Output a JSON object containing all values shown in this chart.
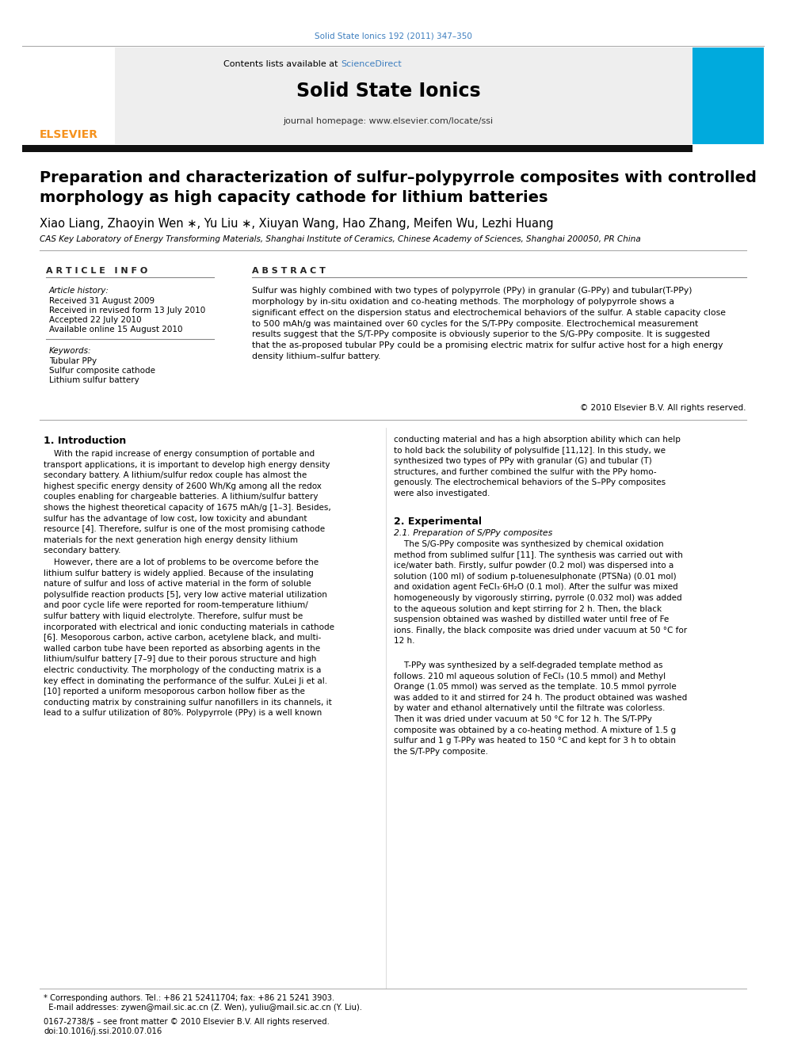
{
  "journal_ref": "Solid State Ionics 192 (2011) 347–350",
  "journal_ref_color": "#3d7ebf",
  "contents_line": "Contents lists available at ",
  "science_direct": "ScienceDirect",
  "science_direct_color": "#3d7ebf",
  "journal_name": "Solid State Ionics",
  "journal_homepage": "journal homepage: www.elsevier.com/locate/ssi",
  "title_line1": "Preparation and characterization of sulfur–polypyrrole composites with controlled",
  "title_line2": "morphology as high capacity cathode for lithium batteries",
  "authors": "Xiao Liang, Zhaoyin Wen ∗, Yu Liu ∗, Xiuyan Wang, Hao Zhang, Meifen Wu, Lezhi Huang",
  "affiliation": "CAS Key Laboratory of Energy Transforming Materials, Shanghai Institute of Ceramics, Chinese Academy of Sciences, Shanghai 200050, PR China",
  "article_info_header": "A R T I C L E   I N F O",
  "abstract_header": "A B S T R A C T",
  "history_label": "Article history:",
  "received": "Received 31 August 2009",
  "revised": "Received in revised form 13 July 2010",
  "accepted": "Accepted 22 July 2010",
  "available": "Available online 15 August 2010",
  "keywords_label": "Keywords:",
  "kw1": "Tubular PPy",
  "kw2": "Sulfur composite cathode",
  "kw3": "Lithium sulfur battery",
  "abstract": "Sulfur was highly combined with two types of polypyrrole (PPy) in granular (G-PPy) and tubular(T-PPy)\nmorphology by in-situ oxidation and co-heating methods. The morphology of polypyrrole shows a\nsignificant effect on the dispersion status and electrochemical behaviors of the sulfur. A stable capacity close\nto 500 mAh/g was maintained over 60 cycles for the S/T-PPy composite. Electrochemical measurement\nresults suggest that the S/T-PPy composite is obviously superior to the S/G-PPy composite. It is suggested\nthat the as-proposed tubular PPy could be a promising electric matrix for sulfur active host for a high energy\ndensity lithium–sulfur battery.",
  "copyright": "© 2010 Elsevier B.V. All rights reserved.",
  "intro_header": "1. Introduction",
  "intro_col1_p1": "    With the rapid increase of energy consumption of portable and\ntransport applications, it is important to develop high energy density\nsecondary battery. A lithium/sulfur redox couple has almost the\nhighest specific energy density of 2600 Wh/Kg among all the redox\ncouples enabling for chargeable batteries. A lithium/sulfur battery\nshows the highest theoretical capacity of 1675 mAh/g [1–3]. Besides,\nsulfur has the advantage of low cost, low toxicity and abundant\nresource [4]. Therefore, sulfur is one of the most promising cathode\nmaterials for the next generation high energy density lithium\nsecondary battery.",
  "intro_col1_p2": "    However, there are a lot of problems to be overcome before the\nlithium sulfur battery is widely applied. Because of the insulating\nnature of sulfur and loss of active material in the form of soluble\npolysulfide reaction products [5], very low active material utilization\nand poor cycle life were reported for room-temperature lithium/\nsulfur battery with liquid electrolyte. Therefore, sulfur must be\nincorporated with electrical and ionic conducting materials in cathode\n[6]. Mesoporous carbon, active carbon, acetylene black, and multi-\nwalled carbon tube have been reported as absorbing agents in the\nlithium/sulfur battery [7–9] due to their porous structure and high\nelectric conductivity. The morphology of the conducting matrix is a\nkey effect in dominating the performance of the sulfur. XuLei Ji et al.\n[10] reported a uniform mesoporous carbon hollow fiber as the\nconducting matrix by constraining sulfur nanofillers in its channels, it\nlead to a sulfur utilization of 80%. Polypyrrole (PPy) is a well known",
  "intro_col2_p1": "conducting material and has a high absorption ability which can help\nto hold back the solubility of polysulfide [11,12]. In this study, we\nsynthesized two types of PPy with granular (G) and tubular (T)\nstructures, and further combined the sulfur with the PPy homo-\ngenously. The electrochemical behaviors of the S–PPy composites\nwere also investigated.",
  "exp_header": "2. Experimental",
  "exp_sub": "2.1. Preparation of S/PPy composites",
  "exp_col2_p1": "    The S/G-PPy composite was synthesized by chemical oxidation\nmethod from sublimed sulfur [11]. The synthesis was carried out with\nice/water bath. Firstly, sulfur powder (0.2 mol) was dispersed into a\nsolution (100 ml) of sodium p-toluenesulphonate (PTSNa) (0.01 mol)\nand oxidation agent FeCl₃·6H₂O (0.1 mol). After the sulfur was mixed\nhomogeneously by vigorously stirring, pyrrole (0.032 mol) was added\nto the aqueous solution and kept stirring for 2 h. Then, the black\nsuspension obtained was washed by distilled water until free of Fe\nions. Finally, the black composite was dried under vacuum at 50 °C for\n12 h.",
  "exp_col2_p2": "    T-PPy was synthesized by a self-degraded template method as\nfollows. 210 ml aqueous solution of FeCl₃ (10.5 mmol) and Methyl\nOrange (1.05 mmol) was served as the template. 10.5 mmol pyrrole\nwas added to it and stirred for 24 h. The product obtained was washed\nby water and ethanol alternatively until the filtrate was colorless.\nThen it was dried under vacuum at 50 °C for 12 h. The S/T-PPy\ncomposite was obtained by a co-heating method. A mixture of 1.5 g\nsulfur and 1 g T-PPy was heated to 150 °C and kept for 3 h to obtain\nthe S/T-PPy composite.",
  "footnote1": "* Corresponding authors. Tel.: +86 21 52411704; fax: +86 21 5241 3903.",
  "footnote2": "  E-mail addresses: zywen@mail.sic.ac.cn (Z. Wen), yuliu@mail.sic.ac.cn (Y. Liu).",
  "issn": "0167-2738/$ – see front matter © 2010 Elsevier B.V. All rights reserved.",
  "doi": "doi:10.1016/j.ssi.2010.07.016",
  "elsevier_orange": "#f5921e",
  "blue": "#3d7ebf",
  "header_bg": "#eeeeee",
  "dark_bar": "#111111"
}
